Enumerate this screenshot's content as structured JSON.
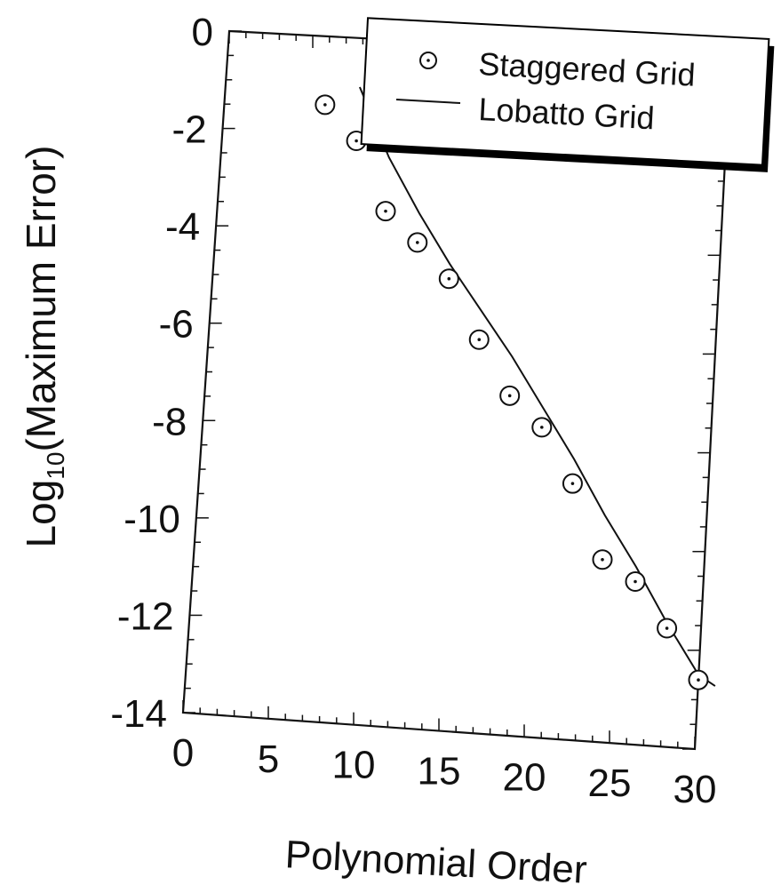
{
  "chart_data": {
    "type": "scatter",
    "title": "",
    "xlabel": "Polynomial Order",
    "ylabel_main": "Log",
    "ylabel_sub": "10",
    "ylabel_rest": "(Maximum Error)",
    "xlim": [
      0,
      30
    ],
    "ylim": [
      -14,
      0
    ],
    "xticks": [
      0,
      5,
      10,
      15,
      20,
      25,
      30
    ],
    "yticks": [
      0,
      -2,
      -4,
      -6,
      -8,
      -10,
      -12,
      -14
    ],
    "grid": false,
    "legend_position": "top-right",
    "series": [
      {
        "name": "Staggered Grid",
        "kind": "markers",
        "marker": "circle",
        "x": [
          6,
          8,
          10,
          12,
          14,
          16,
          18,
          20,
          22,
          24,
          26,
          28,
          30
        ],
        "y": [
          -1.4,
          -2.1,
          -3.5,
          -4.1,
          -4.8,
          -6.0,
          -7.1,
          -7.7,
          -8.8,
          -10.3,
          -10.7,
          -11.6,
          -12.6
        ]
      },
      {
        "name": "Lobatto Grid",
        "kind": "line",
        "x": [
          8,
          10,
          12,
          14,
          16,
          18,
          20,
          22,
          24,
          26,
          28,
          30,
          31
        ],
        "y": [
          -1.0,
          -2.4,
          -3.5,
          -4.5,
          -5.4,
          -6.3,
          -7.3,
          -8.3,
          -9.4,
          -10.4,
          -11.5,
          -12.5,
          -12.7
        ]
      }
    ]
  }
}
